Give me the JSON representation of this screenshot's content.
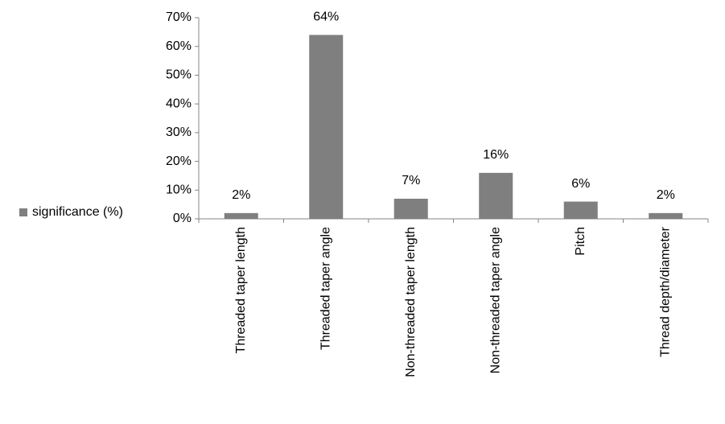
{
  "chart_data": {
    "type": "bar",
    "categories": [
      "Threaded taper length",
      "Threaded taper angle",
      "Non-threaded taper length",
      "Non-threaded taper angle",
      "Pitch",
      "Thread depth/diameter"
    ],
    "series": [
      {
        "name": "significance (%)",
        "color": "#7f7f7f",
        "values": [
          2,
          64,
          7,
          16,
          6,
          2
        ],
        "value_labels": [
          "2%",
          "64%",
          "7%",
          "16%",
          "6%",
          "2%"
        ]
      }
    ],
    "ylim": [
      0,
      70
    ],
    "yticks": [
      {
        "value": 0,
        "label": "0%"
      },
      {
        "value": 10,
        "label": "10%"
      },
      {
        "value": 20,
        "label": "20%"
      },
      {
        "value": 30,
        "label": "30%"
      },
      {
        "value": 40,
        "label": "40%"
      },
      {
        "value": 50,
        "label": "50%"
      },
      {
        "value": 60,
        "label": "60%"
      },
      {
        "value": 70,
        "label": "70%"
      }
    ],
    "grid": false,
    "legend": "left"
  }
}
